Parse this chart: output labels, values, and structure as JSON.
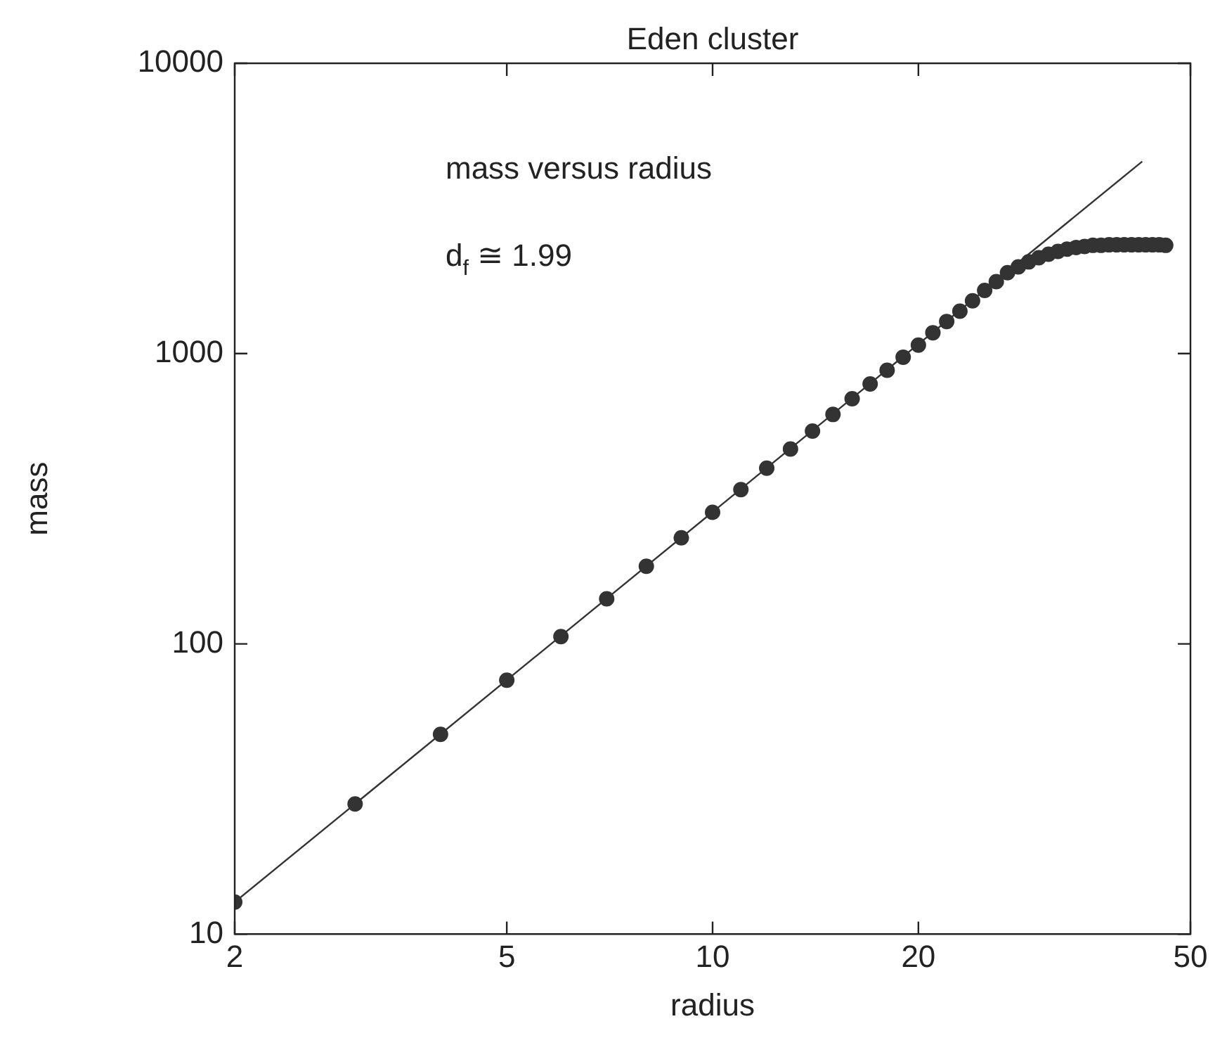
{
  "chart_data": {
    "type": "scatter",
    "title": "Eden cluster",
    "xlabel": "radius",
    "ylabel": "mass",
    "log": "xy",
    "grid": false,
    "legend": false,
    "marker": "circle",
    "xlim": [
      2,
      50
    ],
    "xticks": [
      2,
      5,
      10,
      20,
      50
    ],
    "ylim": [
      10,
      10000
    ],
    "yticks": [
      10,
      100,
      1000,
      10000
    ],
    "annotations": [
      "mass versus radius",
      "d$_{f}$ ≅ 1.99"
    ],
    "series": [
      {
        "type": "scatter",
        "color": "#333333",
        "x": [
          2,
          3,
          4,
          5,
          6,
          7,
          8,
          9,
          10,
          11,
          12,
          13,
          14,
          15,
          16,
          17,
          18,
          19,
          20,
          21,
          22,
          23,
          24,
          25,
          26,
          27,
          28,
          29,
          30,
          31,
          32,
          33,
          34,
          35,
          36,
          37,
          38,
          39,
          40,
          41,
          42,
          43,
          44,
          45,
          46
        ],
        "values": [
          12.9,
          28.1,
          48.8,
          75,
          106,
          143,
          185,
          232,
          284,
          340,
          403,
          469,
          541,
          617,
          699,
          786,
          876,
          972,
          1070,
          1180,
          1290,
          1400,
          1520,
          1650,
          1770,
          1900,
          1990,
          2070,
          2140,
          2200,
          2250,
          2290,
          2320,
          2340,
          2360,
          2360,
          2370,
          2370,
          2370,
          2370,
          2370,
          2370,
          2370,
          2370,
          2360
        ]
      },
      {
        "type": "line",
        "color": "#333333",
        "marker": "none",
        "x": [
          2,
          42.5
        ],
        "values": [
          12.9,
          4590
        ]
      }
    ]
  }
}
